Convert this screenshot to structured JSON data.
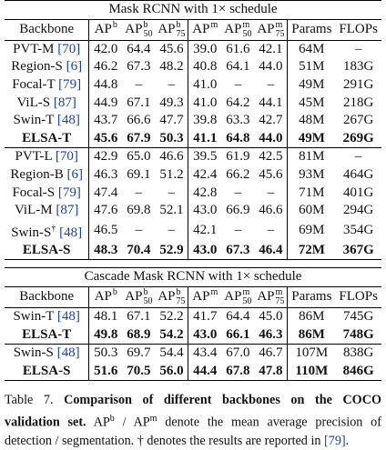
{
  "tables": [
    {
      "title": "Mask RCNN with 1× schedule",
      "header": [
        {
          "text": "Backbone"
        },
        {
          "text": "AP",
          "sup": "b"
        },
        {
          "text": "AP",
          "sup": "b",
          "sub": "50"
        },
        {
          "text": "AP",
          "sup": "b",
          "sub": "75"
        },
        {
          "text": "AP",
          "sup": "m"
        },
        {
          "text": "AP",
          "sup": "m",
          "sub": "50"
        },
        {
          "text": "AP",
          "sup": "m",
          "sub": "75"
        },
        {
          "text": "Params"
        },
        {
          "text": "FLOPs"
        }
      ],
      "groups": [
        [
          {
            "backbone": "PVT-M",
            "ref": "[70]",
            "cells": [
              "42.0",
              "64.4",
              "45.6",
              "39.0",
              "61.6",
              "42.1",
              "64M",
              "–"
            ]
          },
          {
            "backbone": "Region-S",
            "ref": "[6]",
            "cells": [
              "46.2",
              "67.3",
              "48.2",
              "40.8",
              "64.1",
              "44.0",
              "51M",
              "183G"
            ]
          },
          {
            "backbone": "Focal-T",
            "ref": "[79]",
            "cells": [
              "44.8",
              "–",
              "–",
              "41.0",
              "–",
              "–",
              "49M",
              "291G"
            ]
          },
          {
            "backbone": "ViL-S",
            "ref": "[87]",
            "cells": [
              "44.9",
              "67.1",
              "49.3",
              "41.0",
              "64.2",
              "44.1",
              "45M",
              "218G"
            ]
          },
          {
            "backbone": "Swin-T",
            "ref": "[48]",
            "cells": [
              "43.7",
              "66.6",
              "47.7",
              "39.8",
              "63.3",
              "42.7",
              "48M",
              "267G"
            ]
          },
          {
            "backbone": "ELSA-T",
            "bold": true,
            "cells": [
              "45.6",
              "67.9",
              "50.3",
              "41.1",
              "64.8",
              "44.0",
              "49M",
              "269G"
            ]
          }
        ],
        [
          {
            "backbone": "PVT-L",
            "ref": "[70]",
            "cells": [
              "42.9",
              "65.0",
              "46.6",
              "39.5",
              "61.9",
              "42.5",
              "81M",
              "–"
            ]
          },
          {
            "backbone": "Region-B",
            "ref": "[6]",
            "cells": [
              "46.3",
              "69.1",
              "51.2",
              "42.4",
              "66.2",
              "45.6",
              "93M",
              "464G"
            ]
          },
          {
            "backbone": "Focal-S",
            "ref": "[79]",
            "cells": [
              "47.4",
              "–",
              "–",
              "42.8",
              "–",
              "–",
              "71M",
              "401G"
            ]
          },
          {
            "backbone": "ViL-M",
            "ref": "[87]",
            "cells": [
              "47.6",
              "69.8",
              "52.1",
              "43.0",
              "66.9",
              "46.6",
              "60M",
              "294G"
            ]
          },
          {
            "backbone": "Swin-S",
            "mark": "†",
            "ref": "[48]",
            "cells": [
              "46.5",
              "–",
              "–",
              "42.1",
              "–",
              "–",
              "69M",
              "354G"
            ]
          },
          {
            "backbone": "ELSA-S",
            "bold": true,
            "cells": [
              "48.3",
              "70.4",
              "52.9",
              "43.0",
              "67.3",
              "46.4",
              "72M",
              "367G"
            ]
          }
        ]
      ]
    },
    {
      "title": "Cascade Mask RCNN with 1× schedule",
      "header": [
        {
          "text": "Backbone"
        },
        {
          "text": "AP",
          "sup": "b"
        },
        {
          "text": "AP",
          "sup": "b",
          "sub": "50"
        },
        {
          "text": "AP",
          "sup": "b",
          "sub": "75"
        },
        {
          "text": "AP",
          "sup": "m"
        },
        {
          "text": "AP",
          "sup": "m",
          "sub": "50"
        },
        {
          "text": "AP",
          "sup": "m",
          "sub": "75"
        },
        {
          "text": "Params"
        },
        {
          "text": "FLOPs"
        }
      ],
      "groups": [
        [
          {
            "backbone": "Swin-T",
            "ref": "[48]",
            "cells": [
              "48.1",
              "67.1",
              "52.2",
              "41.7",
              "64.4",
              "45.0",
              "86M",
              "745G"
            ]
          },
          {
            "backbone": "ELSA-T",
            "bold": true,
            "cells": [
              "49.8",
              "68.9",
              "54.2",
              "43.0",
              "66.1",
              "46.3",
              "86M",
              "748G"
            ]
          }
        ],
        [
          {
            "backbone": "Swin-S",
            "ref": "[48]",
            "cells": [
              "50.3",
              "69.7",
              "54.4",
              "43.4",
              "67.0",
              "46.7",
              "107M",
              "838G"
            ]
          },
          {
            "backbone": "ELSA-S",
            "bold": true,
            "cells": [
              "51.6",
              "70.5",
              "56.0",
              "44.4",
              "67.8",
              "47.8",
              "110M",
              "846G"
            ]
          }
        ]
      ]
    }
  ],
  "caption": {
    "runs": [
      {
        "text": "Table 7. "
      },
      {
        "text": "Comparison of different backbones on the COCO validation set.",
        "bold": true
      },
      {
        "text": " AP"
      },
      {
        "text": "b",
        "sup": true
      },
      {
        "text": " / AP"
      },
      {
        "text": "m",
        "sup": true
      },
      {
        "text": " denote the mean average precision of detection / segmentation. † denotes the results are reported in "
      },
      {
        "text": "[79]",
        "ref": true
      },
      {
        "text": "."
      }
    ]
  }
}
